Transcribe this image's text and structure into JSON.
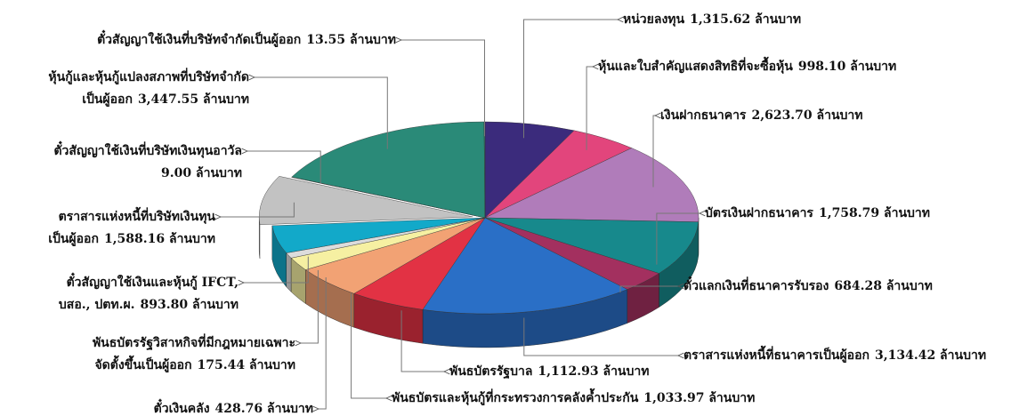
{
  "chart_data": {
    "type": "pie",
    "categories": [
      "หน่วยลงทุน",
      "หุ้นและใบสำคัญแสดงสิทธิที่จะซื้อหุ้น",
      "เงินฝากธนาคาร",
      "บัตรเงินฝากธนาคาร",
      "ตั๋วแลกเงินที่ธนาคารรับรอง",
      "ตราสารแห่งหนี้ที่ธนาคารเป็นผู้ออก",
      "พันธบัตรรัฐบาล",
      "พันธบัตรและหุ้นกู้ที่กระทรวงการคลังค้ำประกัน",
      "ตั๋วเงินคลัง",
      "พันธบัตรรัฐวิสาหกิจที่มีกฎหมายเฉพาะ\nจัดตั้งขึ้นเป็นผู้ออก",
      "ตั๋วสัญญาใช้เงินและหุ้นกู้ IFCT,\nบสอ., ปตท.ผ.",
      "ตราสารแห่งหนี้ที่บริษัทเงินทุน\nเป็นผู้ออก",
      "ตั๋วสัญญาใช้เงินที่บริษัทเงินทุนอาวัล",
      "หุ้นกู้และหุ้นกู้แปลงสภาพที่บริษัทจำกัด\nเป็นผู้ออก",
      "ตั๋วสัญญาใช้เงินที่บริษัทจำกัดเป็นผู้ออก"
    ],
    "values": [
      1315.62,
      998.1,
      2623.7,
      1758.79,
      684.28,
      3134.42,
      1112.93,
      1033.97,
      428.76,
      175.44,
      893.8,
      1588.16,
      9.0,
      3447.55,
      13.55
    ],
    "value_labels": [
      "1,315.62 ล้านบาท",
      "998.10 ล้านบาท",
      "2,623.70 ล้านบาท",
      "1,758.79 ล้านบาท",
      "684.28 ล้านบาท",
      "3,134.42 ล้านบาท",
      "1,112.93 ล้านบาท",
      "1,033.97 ล้านบาท",
      "428.76 ล้านบาท",
      "175.44 ล้านบาท",
      "893.80 ล้านบาท",
      "1,588.16 ล้านบาท",
      "9.00 ล้านบาท",
      "3,447.55 ล้านบาท",
      "13.55 ล้านบาท"
    ],
    "colors": [
      "#3b2b7c",
      "#e2457c",
      "#b07cba",
      "#17898c",
      "#a3305f",
      "#2a6fc6",
      "#e23244",
      "#f2a274",
      "#f6f0a2",
      "#dcdcdc",
      "#12a9c9",
      "#c2c2c2",
      "#e24452",
      "#2a8a78",
      "#2a8a78"
    ]
  }
}
